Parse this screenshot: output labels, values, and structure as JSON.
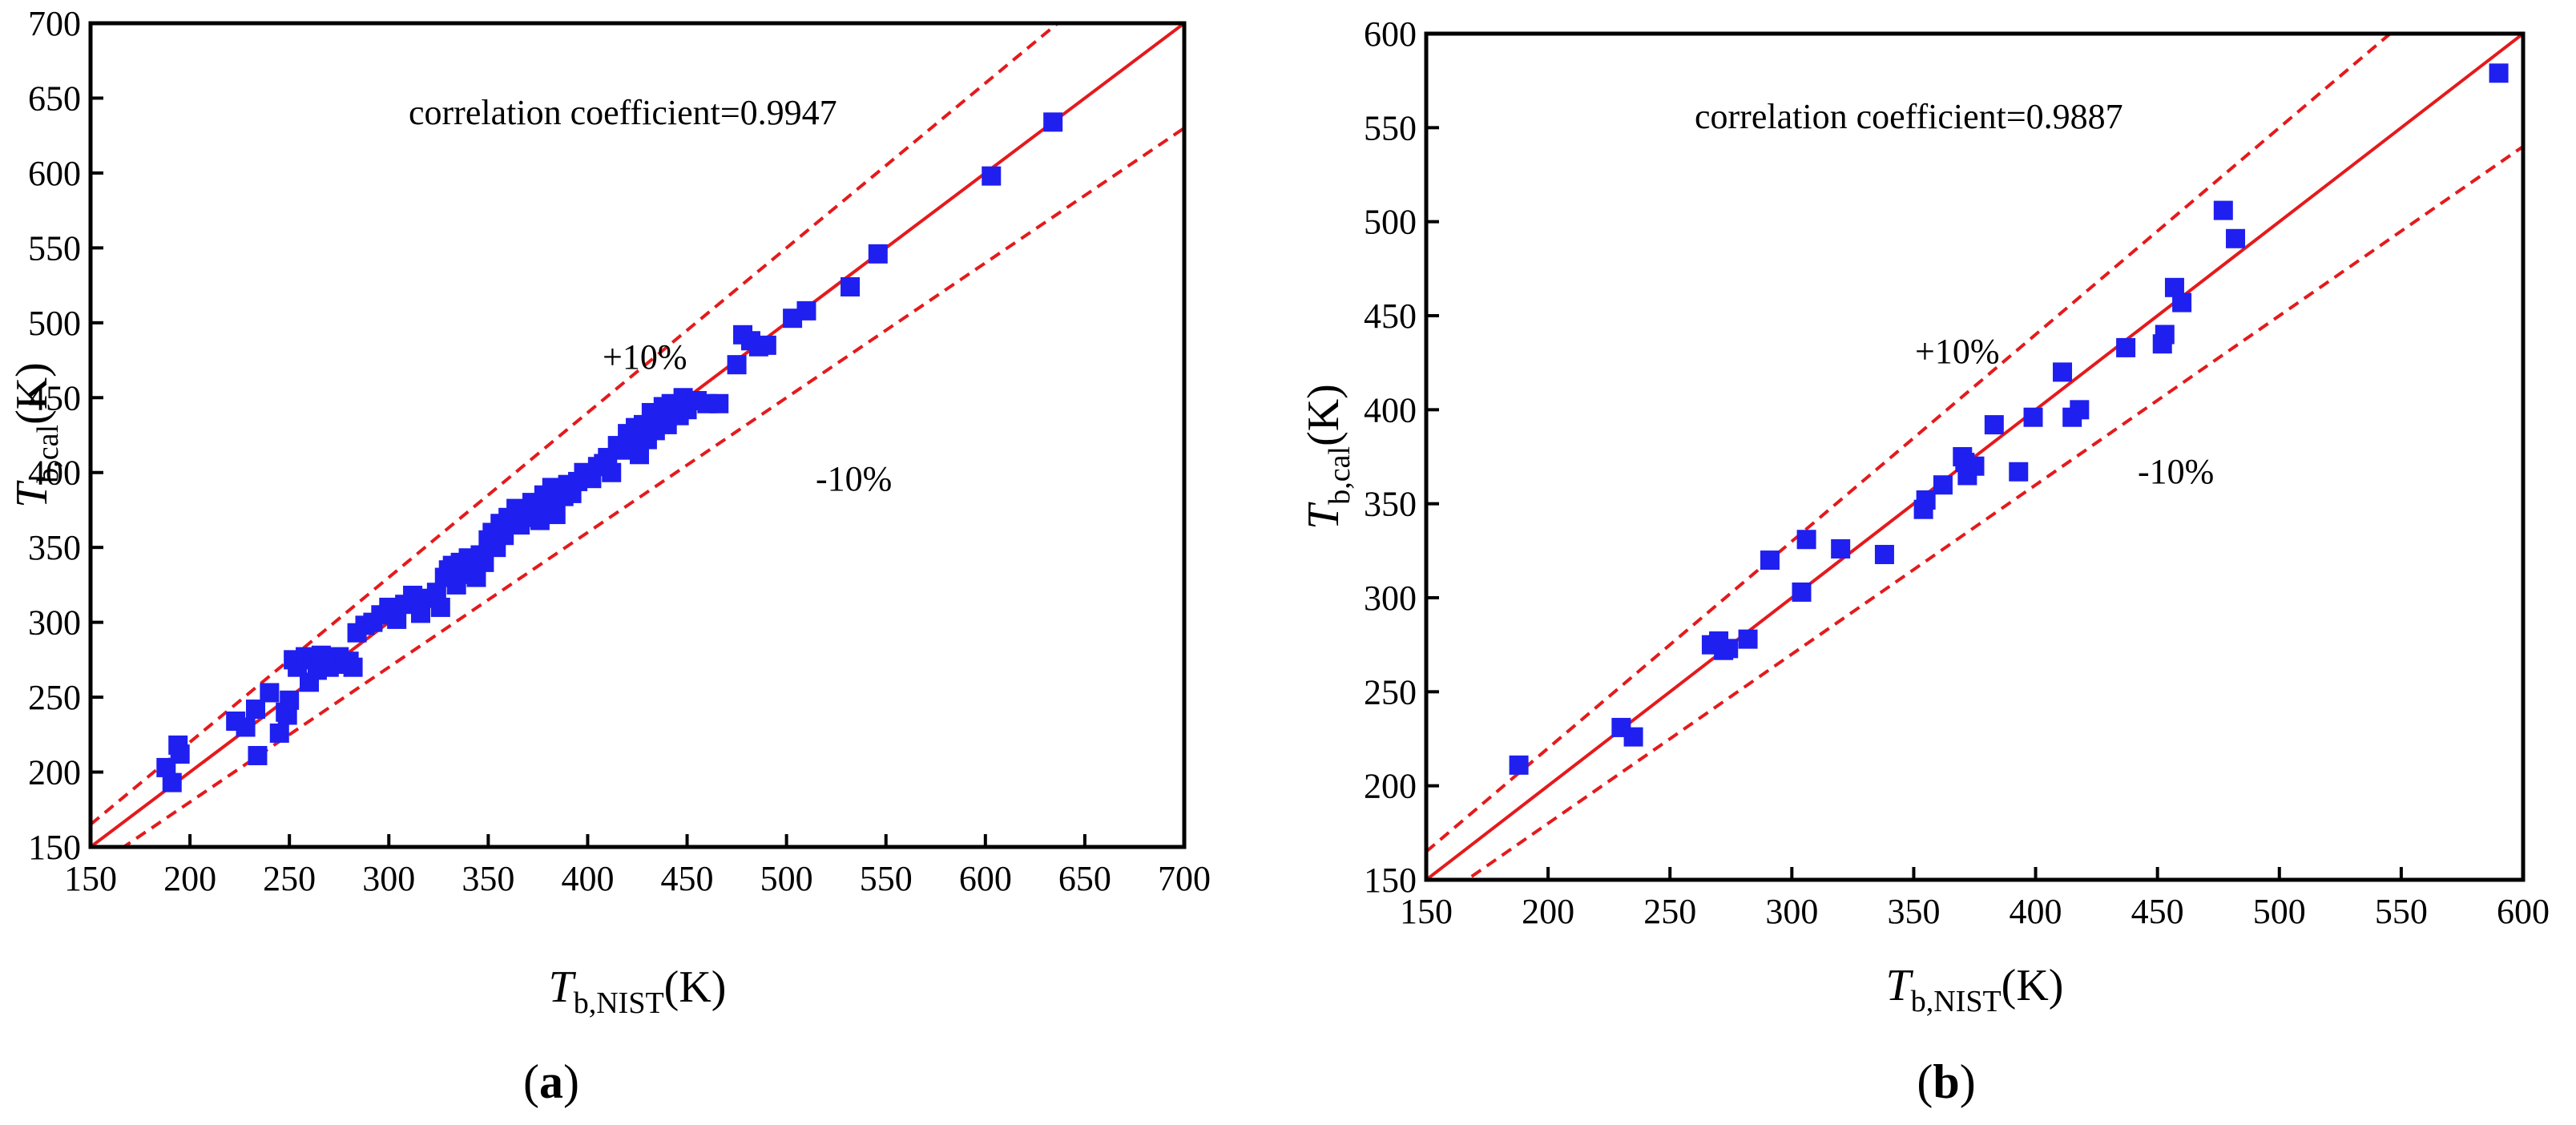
{
  "chart_data": [
    {
      "type": "scatter",
      "panel_label": "a",
      "xlabel": {
        "symbol": "T",
        "sub": "b,NIST",
        "unit": "(K)"
      },
      "ylabel": {
        "symbol": "T",
        "sub": "b,cal",
        "unit": "(K)"
      },
      "xlim": [
        150,
        700
      ],
      "ylim": [
        150,
        700
      ],
      "xticks": [
        150,
        200,
        250,
        300,
        350,
        400,
        450,
        500,
        550,
        600,
        650,
        700
      ],
      "yticks": [
        150,
        200,
        250,
        300,
        350,
        400,
        450,
        500,
        550,
        600,
        650,
        700
      ],
      "annotations": {
        "correlation": "correlation coefficient=0.9947",
        "plus": "+10%",
        "minus": "-10%"
      },
      "lines": [
        {
          "name": "y=x",
          "slope": 1.0,
          "style": "solid",
          "color": "#e41a1c"
        },
        {
          "name": "+10%",
          "slope": 1.1,
          "style": "dashed",
          "color": "#e41a1c"
        },
        {
          "name": "-10%",
          "slope": 0.9,
          "style": "dashed",
          "color": "#e41a1c"
        }
      ],
      "marker_color": "#1f1ff0",
      "x": [
        188,
        191,
        194,
        195,
        223,
        228,
        234,
        233,
        240,
        245,
        248,
        249,
        250,
        252,
        254,
        258,
        260,
        262,
        264,
        266,
        268,
        270,
        272,
        275,
        278,
        280,
        282,
        284,
        288,
        292,
        296,
        300,
        304,
        308,
        312,
        316,
        320,
        324,
        326,
        328,
        330,
        332,
        334,
        336,
        338,
        340,
        342,
        344,
        346,
        348,
        350,
        352,
        354,
        356,
        358,
        360,
        362,
        364,
        366,
        368,
        370,
        372,
        374,
        376,
        378,
        380,
        382,
        384,
        386,
        388,
        390,
        392,
        395,
        398,
        402,
        405,
        408,
        410,
        412,
        415,
        418,
        420,
        422,
        424,
        426,
        428,
        430,
        432,
        434,
        436,
        438,
        440,
        442,
        444,
        446,
        448,
        450,
        455,
        460,
        466,
        475,
        478,
        482,
        486,
        490,
        503,
        510,
        532,
        546,
        603,
        634
      ],
      "y": [
        203,
        193,
        218,
        212,
        234,
        230,
        211,
        242,
        253,
        226,
        240,
        238,
        248,
        275,
        270,
        277,
        260,
        275,
        268,
        278,
        274,
        270,
        276,
        277,
        272,
        274,
        270,
        293,
        298,
        300,
        305,
        310,
        302,
        312,
        318,
        306,
        316,
        320,
        310,
        330,
        335,
        338,
        325,
        340,
        332,
        343,
        336,
        330,
        345,
        340,
        355,
        360,
        350,
        366,
        358,
        370,
        368,
        376,
        365,
        372,
        370,
        380,
        374,
        368,
        385,
        378,
        390,
        372,
        388,
        384,
        392,
        386,
        394,
        400,
        396,
        404,
        406,
        410,
        400,
        418,
        415,
        426,
        420,
        430,
        412,
        432,
        422,
        440,
        428,
        436,
        444,
        432,
        446,
        440,
        438,
        450,
        442,
        448,
        446,
        446,
        472,
        492,
        488,
        484,
        485,
        503,
        508,
        524,
        546,
        598,
        634
      ]
    },
    {
      "type": "scatter",
      "panel_label": "b",
      "xlabel": {
        "symbol": "T",
        "sub": "b,NIST",
        "unit": "(K)"
      },
      "ylabel": {
        "symbol": "T",
        "sub": "b,cal",
        "unit": "(K)"
      },
      "xlim": [
        150,
        600
      ],
      "ylim": [
        150,
        600
      ],
      "xticks": [
        150,
        200,
        250,
        300,
        350,
        400,
        450,
        500,
        550,
        600
      ],
      "yticks": [
        150,
        200,
        250,
        300,
        350,
        400,
        450,
        500,
        550,
        600
      ],
      "annotations": {
        "correlation": "correlation coefficient=0.9887",
        "plus": "+10%",
        "minus": "-10%"
      },
      "lines": [
        {
          "name": "y=x",
          "slope": 1.0,
          "style": "solid",
          "color": "#e41a1c"
        },
        {
          "name": "+10%",
          "slope": 1.1,
          "style": "dashed",
          "color": "#e41a1c"
        },
        {
          "name": "-10%",
          "slope": 0.9,
          "style": "dashed",
          "color": "#e41a1c"
        }
      ],
      "marker_color": "#1f1ff0",
      "x": [
        188,
        230,
        235,
        267,
        270,
        272,
        274,
        282,
        291,
        304,
        306,
        320,
        338,
        354,
        355,
        362,
        370,
        371,
        372,
        375,
        383,
        393,
        399,
        411,
        415,
        418,
        437,
        452,
        453,
        457,
        460,
        477,
        482,
        590
      ],
      "y": [
        211,
        231,
        226,
        275,
        277,
        272,
        273,
        278,
        320,
        303,
        331,
        326,
        323,
        347,
        352,
        360,
        375,
        372,
        365,
        370,
        392,
        367,
        396,
        420,
        396,
        400,
        433,
        435,
        440,
        465,
        457,
        506,
        491,
        579
      ]
    }
  ]
}
